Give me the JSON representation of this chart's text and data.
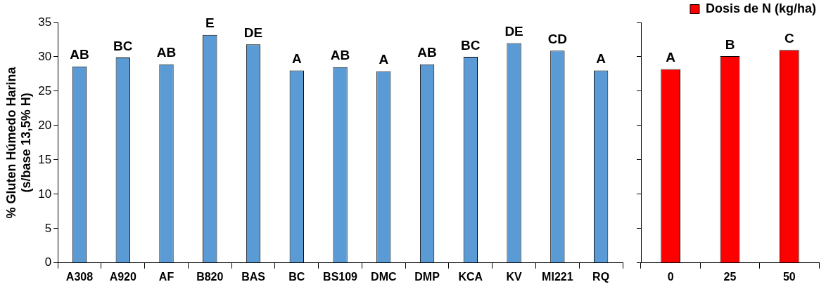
{
  "chart_data": [
    {
      "type": "bar",
      "ylabel": "% Gluten Húmedo Harina\n(s/base 13,5% H)",
      "categories": [
        "A308",
        "A920",
        "AF",
        "B820",
        "BAS",
        "BC",
        "BS109",
        "DMC",
        "DMP",
        "KCA",
        "KV",
        "MI221",
        "RQ"
      ],
      "series": [
        {
          "color": "#5b9bd5",
          "values": [
            28.6,
            29.9,
            28.9,
            33.2,
            31.8,
            28.0,
            28.5,
            27.9,
            28.9,
            30.0,
            32.0,
            30.9,
            28.0
          ],
          "value_labels": [
            "AB",
            "BC",
            "AB",
            "E",
            "DE",
            "A",
            "AB",
            "A",
            "AB",
            "BC",
            "DE",
            "CD",
            "A"
          ]
        }
      ],
      "ylim": [
        0,
        35
      ],
      "yticks": [
        0,
        5,
        10,
        15,
        20,
        25,
        30,
        35
      ]
    },
    {
      "type": "bar",
      "categories": [
        "0",
        "25",
        "50"
      ],
      "legend": "top right",
      "series": [
        {
          "name": "Dosis de N (kg/ha)",
          "color": "#ff0000",
          "values": [
            28.2,
            30.1,
            31.0
          ],
          "value_labels": [
            "A",
            "B",
            "C"
          ]
        }
      ],
      "ylim": [
        0,
        35
      ],
      "yticks": [
        {
          "value": 0,
          "label": null
        },
        {
          "value": 5,
          "label": null
        },
        {
          "value": 10,
          "label": null
        },
        {
          "value": 15,
          "label": null
        },
        {
          "value": 20,
          "label": null
        },
        {
          "value": 25,
          "label": null
        },
        {
          "value": 30,
          "label": null
        },
        {
          "value": 35,
          "label": null
        }
      ],
      "tick_labels": "x"
    }
  ]
}
